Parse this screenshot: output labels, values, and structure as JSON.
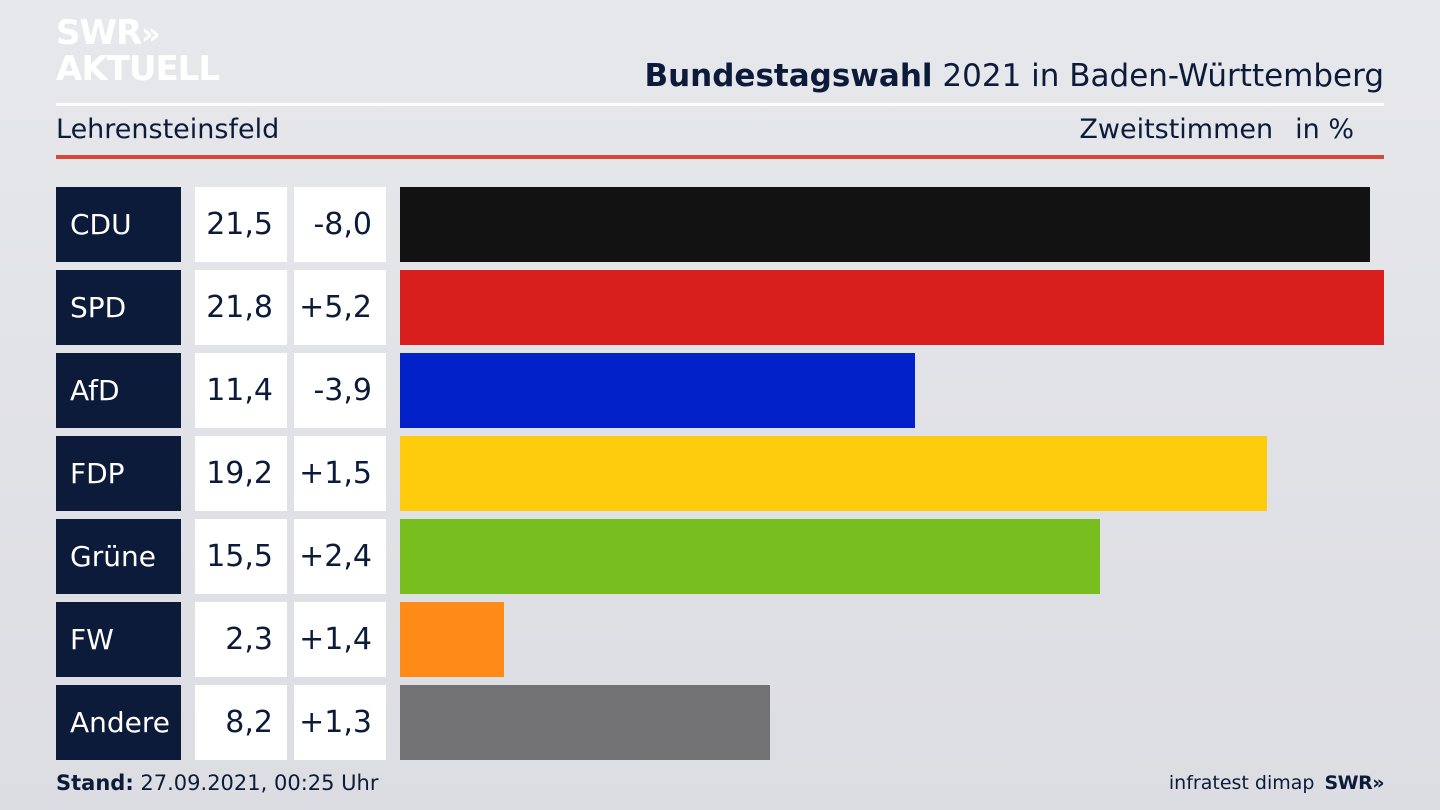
{
  "brand": {
    "logo_line1": "SWR",
    "logo_chevrons": "»",
    "logo_line2": "AKTUELL"
  },
  "header": {
    "title_bold": "Bundestagswahl",
    "title_rest": " 2021 in Baden-Württemberg",
    "region": "Lehrensteinsfeld",
    "measure": "Zweitstimmen",
    "unit": "in %"
  },
  "chart_data": {
    "type": "bar",
    "orientation": "horizontal",
    "categories": [
      "CDU",
      "SPD",
      "AfD",
      "FDP",
      "Grüne",
      "FW",
      "Andere"
    ],
    "values": [
      21.5,
      21.8,
      11.4,
      19.2,
      15.5,
      2.3,
      8.2
    ],
    "values_label": [
      "21,5",
      "21,8",
      "11,4",
      "19,2",
      "15,5",
      "2,3",
      "8,2"
    ],
    "change": [
      "-8,0",
      "+5,2",
      "-3,9",
      "+1,5",
      "+2,4",
      "+1,4",
      "+1,3"
    ],
    "colors": [
      "#121212",
      "#d91f1e",
      "#0221c9",
      "#fecb0d",
      "#78be1e",
      "#fe8a18",
      "#727274"
    ],
    "xlim": [
      0,
      21.8
    ]
  },
  "footer": {
    "stand_label": "Stand:",
    "stand_value": " 27.09.2021, 00:25 Uhr",
    "source": "infratest dimap",
    "brand": "SWR»"
  }
}
